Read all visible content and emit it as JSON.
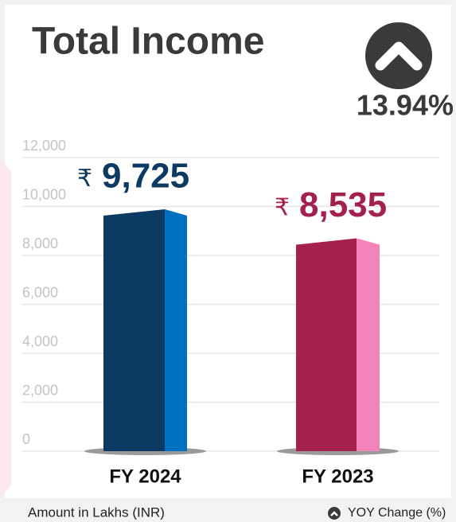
{
  "chart_data": {
    "type": "bar",
    "title": "Total Income",
    "yoy_change": {
      "value": 13.94,
      "label": "13.94%"
    },
    "currency": "₹",
    "categories": [
      "FY 2024",
      "FY 2023"
    ],
    "values": [
      9725,
      8535
    ],
    "value_labels": [
      "9,725",
      "8,535"
    ],
    "colors": [
      {
        "front": "#0d3a63",
        "side": "#0070c0",
        "label": "#0d3a63"
      },
      {
        "front": "#a3204f",
        "side": "#f384b9",
        "label": "#a3204f"
      }
    ],
    "ylim": [
      0,
      12000
    ],
    "yticks": [
      0,
      {
        "value": 2000,
        "label": "2,000"
      },
      {
        "value": 4000,
        "label": "4,000"
      },
      {
        "value": 6000,
        "label": "6,000"
      },
      {
        "value": 8000,
        "label": "8,000"
      },
      {
        "value": 10000,
        "label": "10,000"
      },
      {
        "value": 12000,
        "label": "12,000"
      }
    ],
    "grid": true,
    "footnote": "Amount in Lakhs (INR)",
    "legend_label": "YOY Change (%)"
  }
}
